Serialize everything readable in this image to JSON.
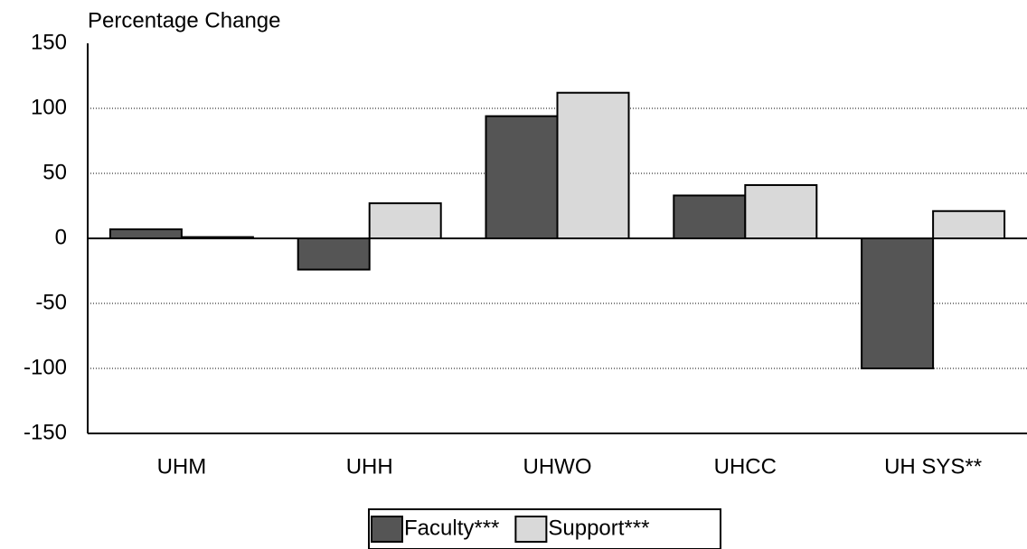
{
  "chart_data": {
    "type": "bar",
    "y_label": "Percentage Change",
    "categories": [
      "UHM",
      "UHH",
      "UHWO",
      "UHCC",
      "UH SYS**"
    ],
    "series": [
      {
        "name": "Faculty***",
        "color": "#555555",
        "values": [
          7,
          -24,
          94,
          33,
          -100
        ]
      },
      {
        "name": "Support***",
        "color": "#d9d9d9",
        "values": [
          1,
          27,
          112,
          41,
          21
        ]
      }
    ],
    "ylim": [
      -150,
      150
    ],
    "yticks": [
      -150,
      -100,
      -50,
      0,
      50,
      100,
      150
    ],
    "grid": true,
    "legend": "bottom"
  }
}
